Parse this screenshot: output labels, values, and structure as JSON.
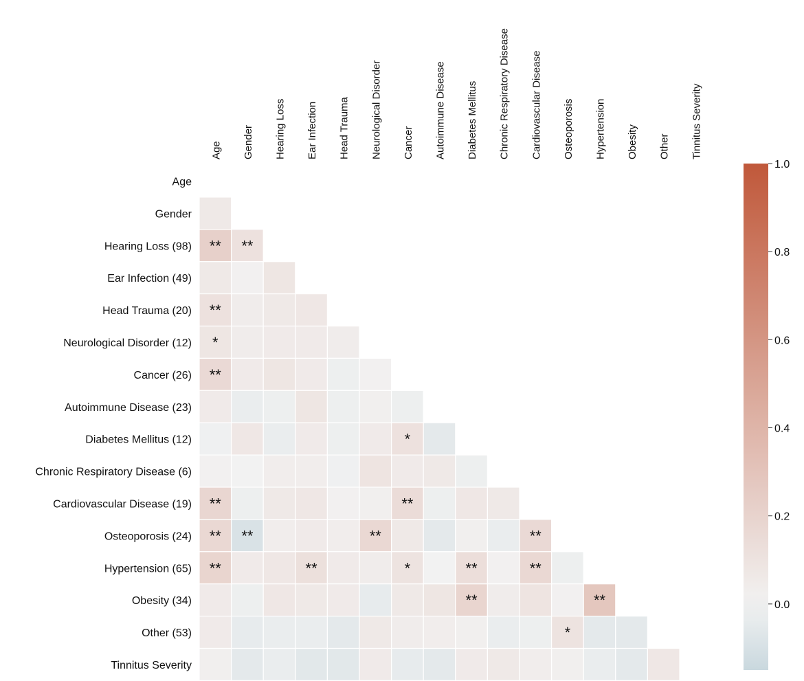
{
  "chart_data": {
    "type": "heatmap",
    "title": "",
    "row_labels": [
      "Age",
      "Gender",
      "Hearing Loss (98)",
      "Ear Infection (49)",
      "Head Trauma (20)",
      "Neurological Disorder (12)",
      "Cancer (26)",
      "Autoimmune Disease (23)",
      "Diabetes Mellitus (12)",
      "Chronic Respiratory Disease (6)",
      "Cardiovascular Disease (19)",
      "Osteoporosis (24)",
      "Hypertension (65)",
      "Obesity (34)",
      "Other (53)",
      "Tinnitus Severity"
    ],
    "col_labels": [
      "Age",
      "Gender",
      "Hearing Loss",
      "Ear Infection",
      "Head Trauma",
      "Neurological Disorder",
      "Cancer",
      "Autoimmune Disease",
      "Diabetes Mellitus",
      "Chronic Respiratory Disease",
      "Cardiovascular Disease",
      "Osteoporosis",
      "Hypertension",
      "Obesity",
      "Other",
      "Tinnitus Severity"
    ],
    "mask": "upper-triangle-and-diagonal",
    "values": [
      [],
      [
        0.06
      ],
      [
        0.22,
        0.11
      ],
      [
        0.06,
        0.01,
        0.08
      ],
      [
        0.11,
        0.04,
        0.06,
        0.07
      ],
      [
        0.08,
        0.04,
        0.05,
        0.05,
        0.04
      ],
      [
        0.16,
        0.05,
        0.08,
        0.05,
        -0.02,
        0.01
      ],
      [
        0.05,
        -0.03,
        -0.02,
        0.08,
        -0.02,
        0.02,
        -0.02
      ],
      [
        -0.01,
        0.07,
        -0.03,
        0.05,
        -0.02,
        0.05,
        0.11,
        -0.05
      ],
      [
        0.01,
        0.0,
        0.03,
        0.03,
        -0.01,
        0.09,
        0.05,
        0.06,
        -0.02
      ],
      [
        0.18,
        -0.02,
        0.06,
        0.07,
        0.01,
        0.02,
        0.14,
        -0.02,
        0.07,
        0.06
      ],
      [
        0.17,
        -0.09,
        0.03,
        0.05,
        0.03,
        0.17,
        0.06,
        -0.05,
        0.02,
        -0.03,
        0.16
      ],
      [
        0.19,
        0.05,
        0.07,
        0.12,
        0.05,
        0.04,
        0.1,
        0.0,
        0.13,
        0.01,
        0.17,
        -0.02
      ],
      [
        0.05,
        -0.02,
        0.07,
        0.06,
        0.05,
        -0.04,
        0.06,
        0.08,
        0.19,
        0.04,
        0.09,
        0.01,
        0.28
      ],
      [
        0.05,
        -0.04,
        -0.03,
        -0.03,
        -0.05,
        0.06,
        0.04,
        0.03,
        0.02,
        -0.03,
        -0.02,
        0.1,
        -0.05,
        -0.05
      ],
      [
        0.02,
        -0.05,
        -0.03,
        -0.06,
        -0.06,
        0.05,
        -0.04,
        -0.05,
        0.05,
        0.06,
        0.03,
        0.02,
        -0.03,
        -0.05,
        0.07
      ]
    ],
    "annotations": [
      [],
      [
        ""
      ],
      [
        "**",
        "**"
      ],
      [
        "",
        "",
        ""
      ],
      [
        "**",
        "",
        "",
        ""
      ],
      [
        "*",
        "",
        "",
        "",
        ""
      ],
      [
        "**",
        "",
        "",
        "",
        "",
        ""
      ],
      [
        "",
        "",
        "",
        "",
        "",
        "",
        ""
      ],
      [
        "",
        "",
        "",
        "",
        "",
        "",
        "*",
        ""
      ],
      [
        "",
        "",
        "",
        "",
        "",
        "",
        "",
        "",
        ""
      ],
      [
        "**",
        "",
        "",
        "",
        "",
        "",
        "**",
        "",
        "",
        ""
      ],
      [
        "**",
        "**",
        "",
        "",
        "",
        "**",
        "",
        "",
        "",
        "",
        "**"
      ],
      [
        "**",
        "",
        "",
        "**",
        "",
        "",
        "*",
        "",
        "**",
        "",
        "**",
        ""
      ],
      [
        "",
        "",
        "",
        "",
        "",
        "",
        "",
        "",
        "**",
        "",
        "",
        "",
        "**"
      ],
      [
        "",
        "",
        "",
        "",
        "",
        "",
        "",
        "",
        "",
        "",
        "",
        "*",
        "",
        ""
      ],
      [
        "",
        "",
        "",
        "",
        "",
        "",
        "",
        "",
        "",
        "",
        "",
        "",
        "",
        "",
        ""
      ]
    ],
    "colorbar": {
      "vmin": -0.15,
      "vmax": 1.0,
      "ticks": [
        {
          "value": 1.0,
          "label": "1.0"
        },
        {
          "value": 0.8,
          "label": "0.8"
        },
        {
          "value": 0.6,
          "label": "0.6"
        },
        {
          "value": 0.4,
          "label": "0.4"
        },
        {
          "value": 0.2,
          "label": "0.2"
        },
        {
          "value": 0.0,
          "label": "0.0"
        }
      ]
    },
    "colors": {
      "negative": "#c9d8de",
      "neutral": "#f2f2f2",
      "positive": "#c0583a"
    }
  }
}
